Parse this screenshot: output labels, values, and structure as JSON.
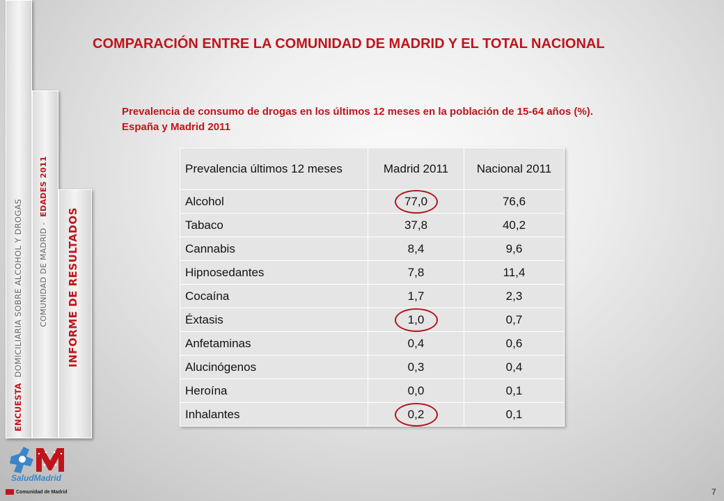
{
  "sidebar": {
    "survey_red": "ENCUESTA",
    "survey_rest": "DOMICILIARIA  SOBRE  ALCOHOL  Y  DROGAS",
    "region": "COMUNIDAD  DE  MADRID  -",
    "ages": "EDADES  2011",
    "report": "INFORME  DE   RESULTADOS"
  },
  "title": "COMPARACIÓN ENTRE LA COMUNIDAD DE MADRID Y EL TOTAL NACIONAL",
  "subtitle": "Prevalencia de consumo de drogas en los últimos 12 meses en la población de 15-64 años (%). España y  Madrid 2011",
  "table": {
    "headers": [
      "Prevalencia últimos 12 meses",
      "Madrid 2011",
      "Nacional 2011"
    ],
    "rows": [
      {
        "label": "Alcohol",
        "madrid": "77,0",
        "nacional": "76,6"
      },
      {
        "label": "Tabaco",
        "madrid": "37,8",
        "nacional": "40,2"
      },
      {
        "label": "Cannabis",
        "madrid": "8,4",
        "nacional": "9,6"
      },
      {
        "label": "Hipnosedantes",
        "madrid": "7,8",
        "nacional": "11,4"
      },
      {
        "label": "Cocaína",
        "madrid": "1,7",
        "nacional": "2,3"
      },
      {
        "label": "Éxtasis",
        "madrid": "1,0",
        "nacional": "0,7"
      },
      {
        "label": "Anfetaminas",
        "madrid": "0,4",
        "nacional": "0,6"
      },
      {
        "label": "Alucinógenos",
        "madrid": "0,3",
        "nacional": "0,4"
      },
      {
        "label": "Heroína",
        "madrid": "0,0",
        "nacional": "0,1"
      },
      {
        "label": "Inhalantes",
        "madrid": "0,2",
        "nacional": "0,1"
      }
    ]
  },
  "logo": {
    "name": "SaludMadrid",
    "footer": "Comunidad de Madrid",
    "colors": {
      "blue": "#3a86c8",
      "red": "#c0141b"
    }
  },
  "page_number": "7",
  "accent_color": "#c0141b"
}
